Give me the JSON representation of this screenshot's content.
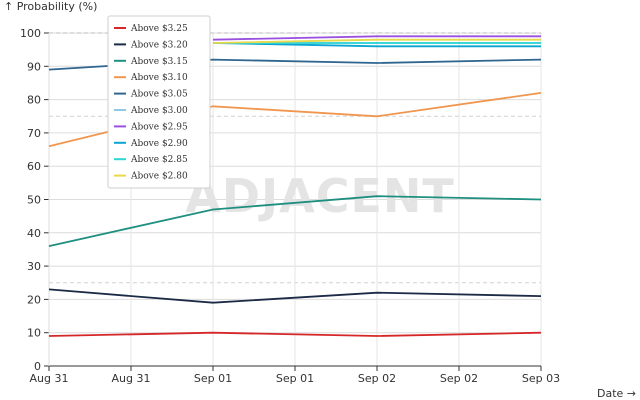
{
  "chart_data": {
    "type": "line",
    "ylabel": "↑ Probability (%)",
    "xlabel": "Date →",
    "watermark": "ADJACENT",
    "ylim": [
      0,
      100
    ],
    "yticks": [
      0,
      10,
      20,
      30,
      40,
      50,
      60,
      70,
      80,
      90,
      100
    ],
    "xtick_labels": [
      "Aug 31",
      "Aug 31",
      "Sep 01",
      "Sep 01",
      "Sep 02",
      "Sep 02",
      "Sep 03"
    ],
    "x": [
      "Aug 31",
      "Sep 01",
      "Sep 02",
      "Sep 03"
    ],
    "grid": true,
    "legend_placement": "top-left",
    "series": [
      {
        "name": "Above $3.25",
        "color": "#d62728",
        "values": [
          9,
          10,
          9,
          10
        ]
      },
      {
        "name": "Above $3.20",
        "color": "#1b2a45",
        "values": [
          23,
          19,
          22,
          21
        ]
      },
      {
        "name": "Above $3.15",
        "color": "#1f8f80",
        "values": [
          36,
          47,
          51,
          50
        ]
      },
      {
        "name": "Above $3.10",
        "color": "#f0964f",
        "values": [
          66,
          78,
          75,
          82
        ]
      },
      {
        "name": "Above $3.05",
        "color": "#2f6690",
        "values": [
          89,
          92,
          91,
          92
        ]
      },
      {
        "name": "Above $3.00",
        "color": "#8ecae6",
        "values": [
          null,
          97,
          97,
          97
        ]
      },
      {
        "name": "Above $2.95",
        "color": "#9b51e0",
        "values": [
          null,
          98,
          99,
          99
        ]
      },
      {
        "name": "Above $2.90",
        "color": "#0aa5d0",
        "values": [
          null,
          97,
          96,
          96
        ]
      },
      {
        "name": "Above $2.85",
        "color": "#2ed6d6",
        "values": [
          null,
          97,
          97,
          97
        ]
      },
      {
        "name": "Above $2.80",
        "color": "#e8d84a",
        "values": [
          null,
          97,
          98,
          98
        ]
      }
    ]
  }
}
